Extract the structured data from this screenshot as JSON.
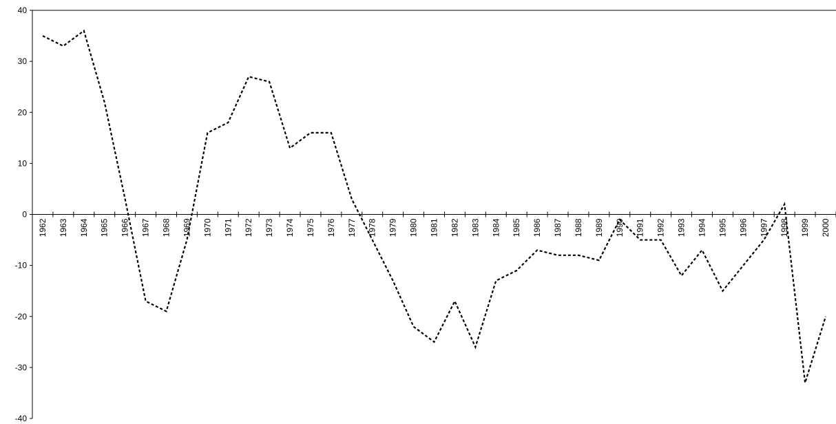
{
  "chart_data": {
    "type": "line",
    "categories": [
      "1962",
      "1963",
      "1964",
      "1965",
      "1966",
      "1967",
      "1968",
      "1969",
      "1970",
      "1971",
      "1972",
      "1973",
      "1974",
      "1975",
      "1976",
      "1977",
      "1978",
      "1979",
      "1980",
      "1981",
      "1982",
      "1983",
      "1984",
      "1985",
      "1986",
      "1987",
      "1988",
      "1989",
      "1990",
      "1991",
      "1992",
      "1993",
      "1994",
      "1995",
      "1996",
      "1997",
      "1998",
      "1999",
      "2000"
    ],
    "values": [
      35,
      33,
      36,
      22,
      3,
      -17,
      -19,
      -5,
      16,
      18,
      27,
      26,
      13,
      16,
      16,
      3,
      -5,
      -13,
      -22,
      -25,
      -17,
      -26,
      -13,
      -11,
      -7,
      -8,
      -8,
      -9,
      -1,
      -5,
      -5,
      -12,
      -7,
      -15,
      -10,
      -5,
      2,
      -33,
      -20
    ],
    "color": "#000000",
    "ylim": [
      -40,
      40
    ],
    "yticks": [
      -40,
      -30,
      -20,
      -10,
      0,
      10,
      20,
      30,
      40
    ]
  }
}
